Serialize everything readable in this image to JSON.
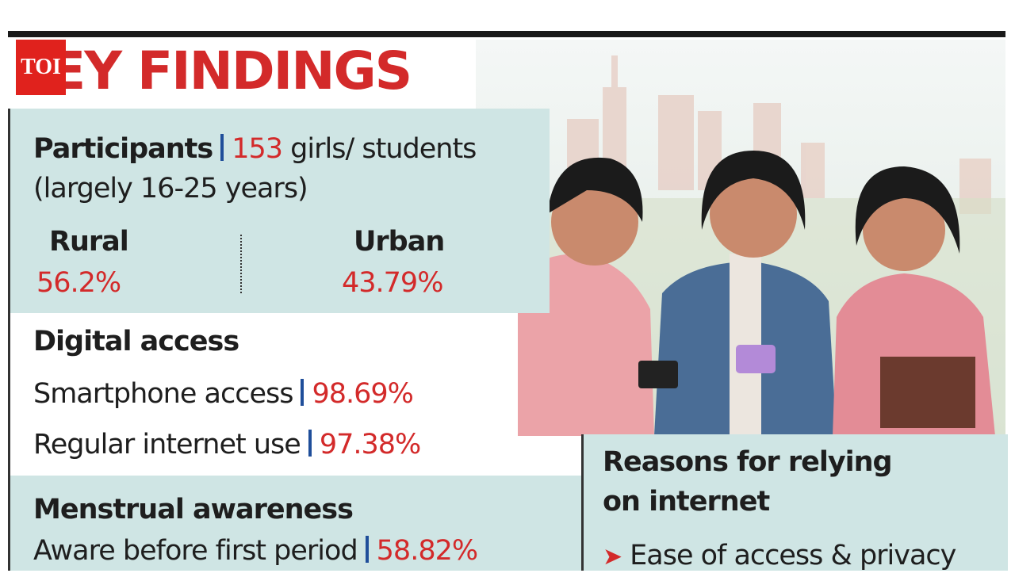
{
  "logo": "TOI",
  "title": "KEY FINDINGS",
  "participants": {
    "label": "Participants",
    "count": "153",
    "description": "girls/ students (largely 16-25 years)",
    "rural": {
      "label": "Rural",
      "value": "56.2%"
    },
    "urban": {
      "label": "Urban",
      "value": "43.79%"
    }
  },
  "digital_access": {
    "heading": "Digital access",
    "items": [
      {
        "label": "Smartphone access",
        "value": "98.69%"
      },
      {
        "label": "Regular internet use",
        "value": "97.38%"
      }
    ]
  },
  "menstrual_awareness": {
    "heading": "Menstrual awareness",
    "items": [
      {
        "label": "Aware before first period",
        "value": "58.82%"
      }
    ]
  },
  "reasons": {
    "heading": "Reasons for relying on internet",
    "items": [
      "Ease of access & privacy"
    ]
  }
}
